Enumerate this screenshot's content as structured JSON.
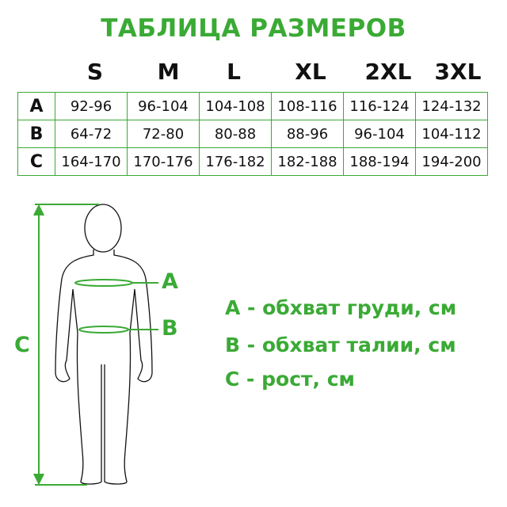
{
  "title": "ТАБЛИЦА РАЗМЕРОВ",
  "sizes": [
    "S",
    "M",
    "L",
    "XL",
    "2XL",
    "3XL"
  ],
  "rows": [
    {
      "label": "A",
      "values": [
        "92-96",
        "96-104",
        "104-108",
        "108-116",
        "116-124",
        "124-132"
      ]
    },
    {
      "label": "B",
      "values": [
        "64-72",
        "72-80",
        "80-88",
        "88-96",
        "96-104",
        "104-112"
      ]
    },
    {
      "label": "C",
      "values": [
        "164-170",
        "170-176",
        "176-182",
        "182-188",
        "188-194",
        "194-200"
      ]
    }
  ],
  "figure_labels": {
    "a": "A",
    "b": "B",
    "c": "C"
  },
  "legend": [
    "A - обхват груди, см",
    "B - обхват талии, см",
    "C - рост, см"
  ],
  "colors": {
    "accent": "#3aaa35",
    "text": "#111111"
  }
}
